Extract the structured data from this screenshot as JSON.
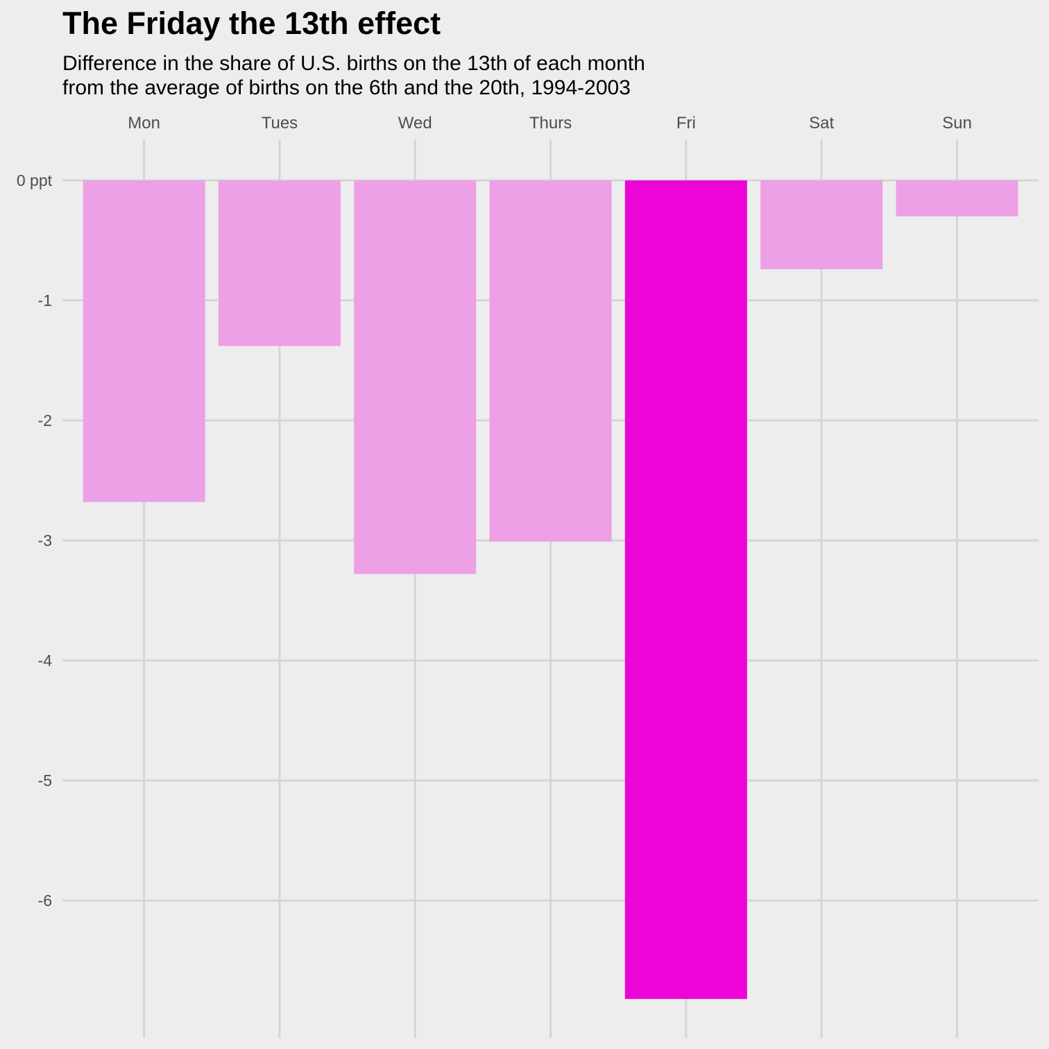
{
  "title": "The Friday the 13th effect",
  "subtitle": {
    "line1": "Difference in the share of U.S. births on the 13th of each month",
    "line2": "from the average of births on the 6th and the 20th, 1994-2003"
  },
  "colors": {
    "background": "#ededed",
    "grid": "#d5d5d5",
    "bar": "#eda0e6",
    "highlight": "#ec05d6",
    "tick_text": "#4d4d4d"
  },
  "chart_data": {
    "type": "bar",
    "title": "The Friday the 13th effect",
    "subtitle": "Difference in the share of U.S. births on the 13th of each month from the average of births on the 6th and the 20th, 1994-2003",
    "categories": [
      "Mon",
      "Tues",
      "Wed",
      "Thurs",
      "Fri",
      "Sat",
      "Sun"
    ],
    "values": [
      -2.68,
      -1.38,
      -3.28,
      -3.01,
      -6.82,
      -0.74,
      -0.3
    ],
    "highlight": "Fri",
    "y_ticks": [
      {
        "value": 0,
        "label": "0 ppt"
      },
      {
        "value": -1,
        "label": "-1"
      },
      {
        "value": -2,
        "label": "-2"
      },
      {
        "value": -3,
        "label": "-3"
      },
      {
        "value": -4,
        "label": "-4"
      },
      {
        "value": -5,
        "label": "-5"
      },
      {
        "value": -6,
        "label": "-6"
      }
    ],
    "ylim": [
      -7.0,
      0.3
    ],
    "xlabel": "",
    "ylabel": "",
    "x_axis_position": "top",
    "grid": true,
    "legend": "none"
  }
}
